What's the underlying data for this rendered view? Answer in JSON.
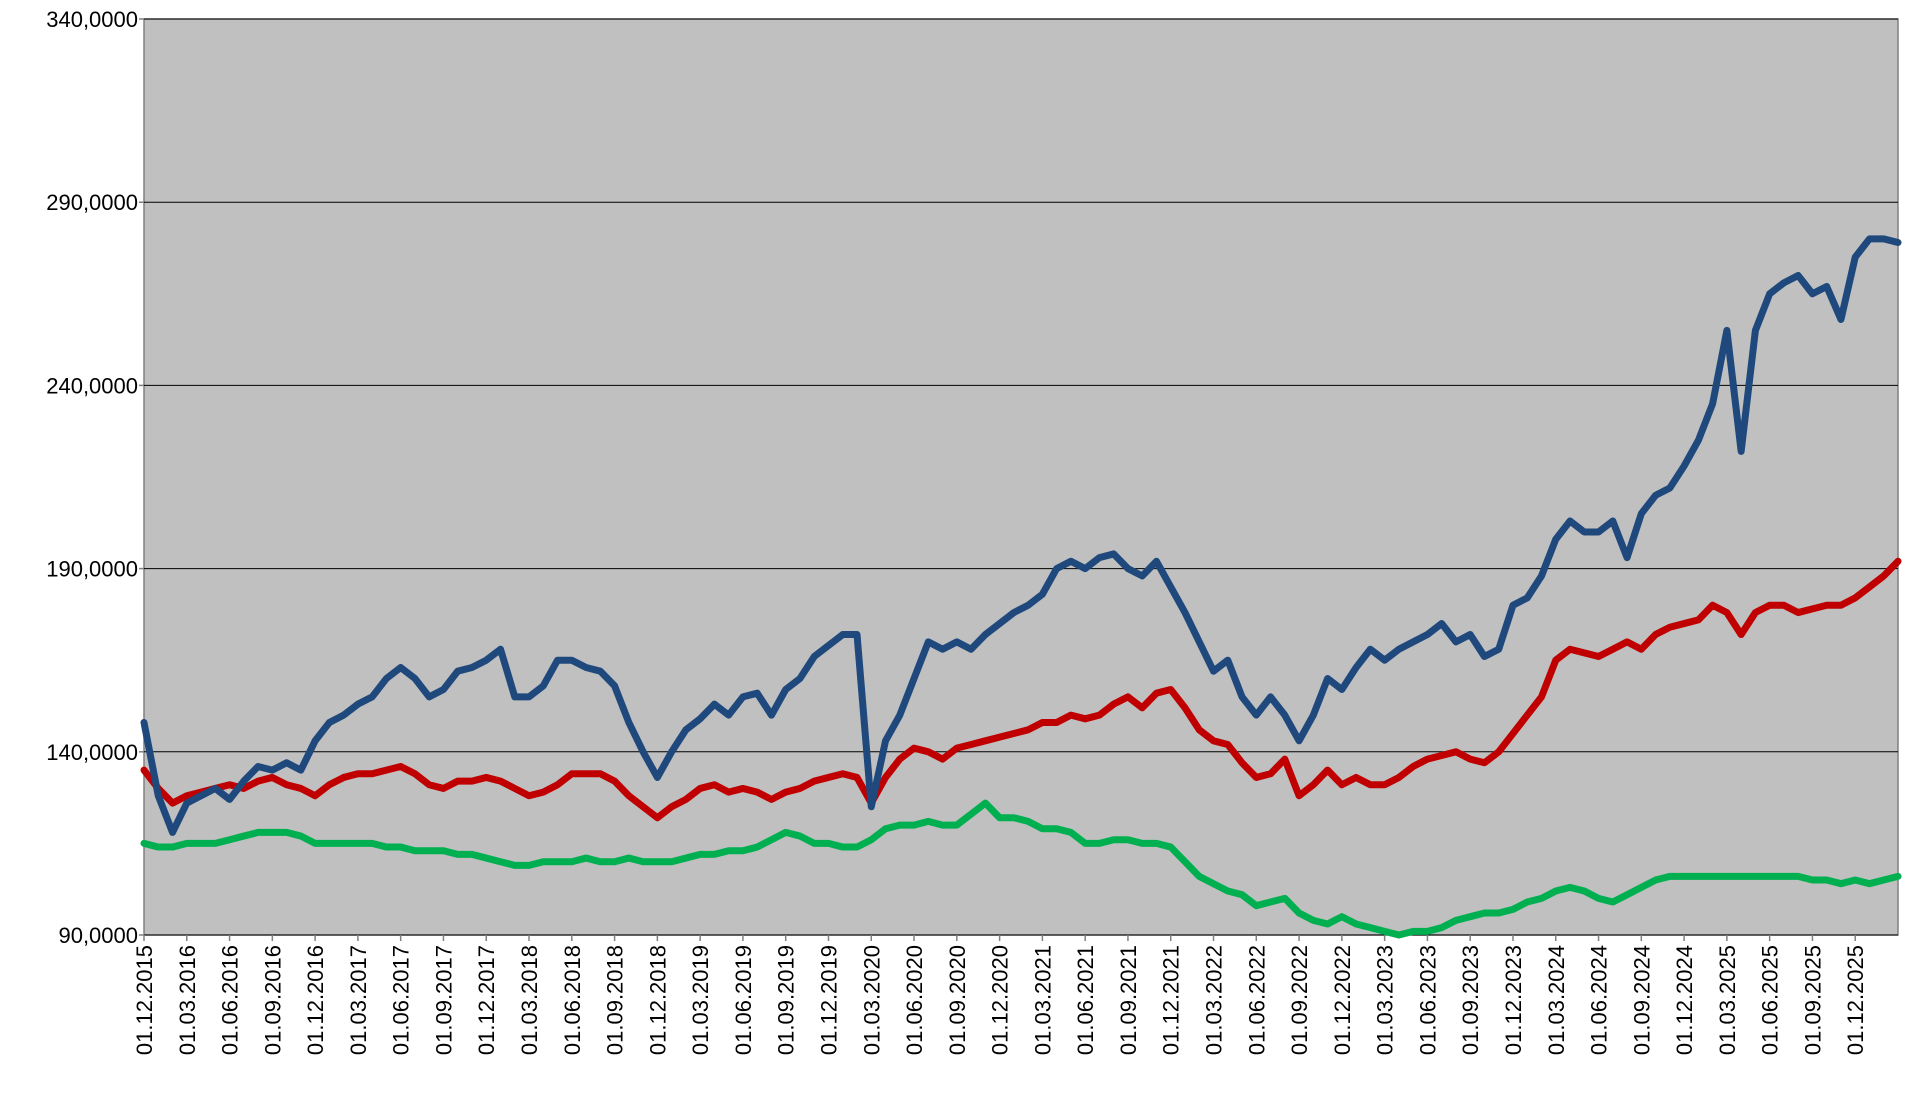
{
  "chart_data": {
    "type": "line",
    "categories": [
      "01.12.2015",
      null,
      null,
      "01.03.2016",
      null,
      null,
      "01.06.2016",
      null,
      null,
      "01.09.2016",
      null,
      null,
      "01.12.2016",
      null,
      null,
      "01.03.2017",
      null,
      null,
      "01.06.2017",
      null,
      null,
      "01.09.2017",
      null,
      null,
      "01.12.2017",
      null,
      null,
      "01.03.2018",
      null,
      null,
      "01.06.2018",
      null,
      null,
      "01.09.2018",
      null,
      null,
      "01.12.2018",
      null,
      null,
      "01.03.2019",
      null,
      null,
      "01.06.2019",
      null,
      null,
      "01.09.2019",
      null,
      null,
      "01.12.2019",
      null,
      null,
      "01.03.2020",
      null,
      null,
      "01.06.2020",
      null,
      null,
      "01.09.2020",
      null,
      null,
      "01.12.2020",
      null,
      null,
      "01.03.2021",
      null,
      null,
      "01.06.2021",
      null,
      null,
      "01.09.2021",
      null,
      null,
      "01.12.2021",
      null,
      null,
      "01.03.2022",
      null,
      null,
      "01.06.2022",
      null,
      null,
      "01.09.2022",
      null,
      null,
      "01.12.2022",
      null,
      null,
      "01.03.2023",
      null,
      null,
      "01.06.2023",
      null,
      null,
      "01.09.2023",
      null,
      null,
      "01.12.2023",
      null,
      null,
      "01.03.2024",
      null,
      null,
      "01.06.2024",
      null,
      null,
      "01.09.2024",
      null,
      null,
      "01.12.2024",
      null,
      null,
      "01.03.2025",
      null,
      null,
      "01.06.2025",
      null,
      null,
      "01.09.2025",
      null,
      null,
      "01.12.2025",
      null,
      null,
      null
    ],
    "series": [
      {
        "color": "#1f497d",
        "values": [
          148,
          128,
          118,
          126,
          128,
          130,
          127,
          132,
          136,
          135,
          137,
          135,
          143,
          148,
          150,
          153,
          155,
          160,
          163,
          160,
          155,
          157,
          162,
          163,
          165,
          168,
          155,
          155,
          158,
          165,
          165,
          163,
          162,
          158,
          148,
          140,
          133,
          140,
          146,
          149,
          153,
          150,
          155,
          156,
          150,
          157,
          160,
          166,
          169,
          172,
          172,
          125,
          143,
          150,
          160,
          170,
          168,
          170,
          168,
          172,
          175,
          178,
          180,
          183,
          190,
          192,
          190,
          193,
          194,
          190,
          188,
          192,
          185,
          178,
          170,
          162,
          165,
          155,
          150,
          155,
          150,
          143,
          150,
          160,
          157,
          163,
          168,
          165,
          168,
          170,
          172,
          175,
          170,
          172,
          166,
          168,
          180,
          182,
          188,
          198,
          203,
          200,
          200,
          203,
          193,
          205,
          210,
          212,
          218,
          225,
          235,
          255,
          222,
          255,
          265,
          268,
          270,
          265,
          267,
          258,
          275,
          280,
          280,
          279
        ]
      },
      {
        "color": "#c00000",
        "values": [
          135,
          130,
          126,
          128,
          129,
          130,
          131,
          130,
          132,
          133,
          131,
          130,
          128,
          131,
          133,
          134,
          134,
          135,
          136,
          134,
          131,
          130,
          132,
          132,
          133,
          132,
          130,
          128,
          129,
          131,
          134,
          134,
          134,
          132,
          128,
          125,
          122,
          125,
          127,
          130,
          131,
          129,
          130,
          129,
          127,
          129,
          130,
          132,
          133,
          134,
          133,
          126,
          133,
          138,
          141,
          140,
          138,
          141,
          142,
          143,
          144,
          145,
          146,
          148,
          148,
          150,
          149,
          150,
          153,
          155,
          152,
          156,
          157,
          152,
          146,
          143,
          142,
          137,
          133,
          134,
          138,
          128,
          131,
          135,
          131,
          133,
          131,
          131,
          133,
          136,
          138,
          139,
          140,
          138,
          137,
          140,
          145,
          150,
          155,
          165,
          168,
          167,
          166,
          168,
          170,
          168,
          172,
          174,
          175,
          176,
          180,
          178,
          172,
          178,
          180,
          180,
          178,
          179,
          180,
          180,
          182,
          185,
          188,
          192
        ]
      },
      {
        "color": "#00b050",
        "values": [
          115,
          114,
          114,
          115,
          115,
          115,
          116,
          117,
          118,
          118,
          118,
          117,
          115,
          115,
          115,
          115,
          115,
          114,
          114,
          113,
          113,
          113,
          112,
          112,
          111,
          110,
          109,
          109,
          110,
          110,
          110,
          111,
          110,
          110,
          111,
          110,
          110,
          110,
          111,
          112,
          112,
          113,
          113,
          114,
          116,
          118,
          117,
          115,
          115,
          114,
          114,
          116,
          119,
          120,
          120,
          121,
          120,
          120,
          123,
          126,
          122,
          122,
          121,
          119,
          119,
          118,
          115,
          115,
          116,
          116,
          115,
          115,
          114,
          110,
          106,
          104,
          102,
          101,
          98,
          99,
          100,
          96,
          94,
          93,
          95,
          93,
          92,
          91,
          90,
          91,
          91,
          92,
          94,
          95,
          96,
          96,
          97,
          99,
          100,
          102,
          103,
          102,
          100,
          99,
          101,
          103,
          105,
          106,
          106,
          106,
          106,
          106,
          106,
          106,
          106,
          106,
          106,
          105,
          105,
          104,
          105,
          104,
          105,
          106
        ]
      }
    ],
    "ylim": [
      90,
      340
    ],
    "yticks": [
      {
        "value": 90,
        "label": "90,0000"
      },
      {
        "value": 140,
        "label": "140,0000"
      },
      {
        "value": 190,
        "label": "190,0000"
      },
      {
        "value": 240,
        "label": "240,0000"
      },
      {
        "value": 290,
        "label": "290,0000"
      },
      {
        "value": 340,
        "label": "340,0000"
      }
    ],
    "grid": true,
    "background": "#c0c0c0"
  }
}
